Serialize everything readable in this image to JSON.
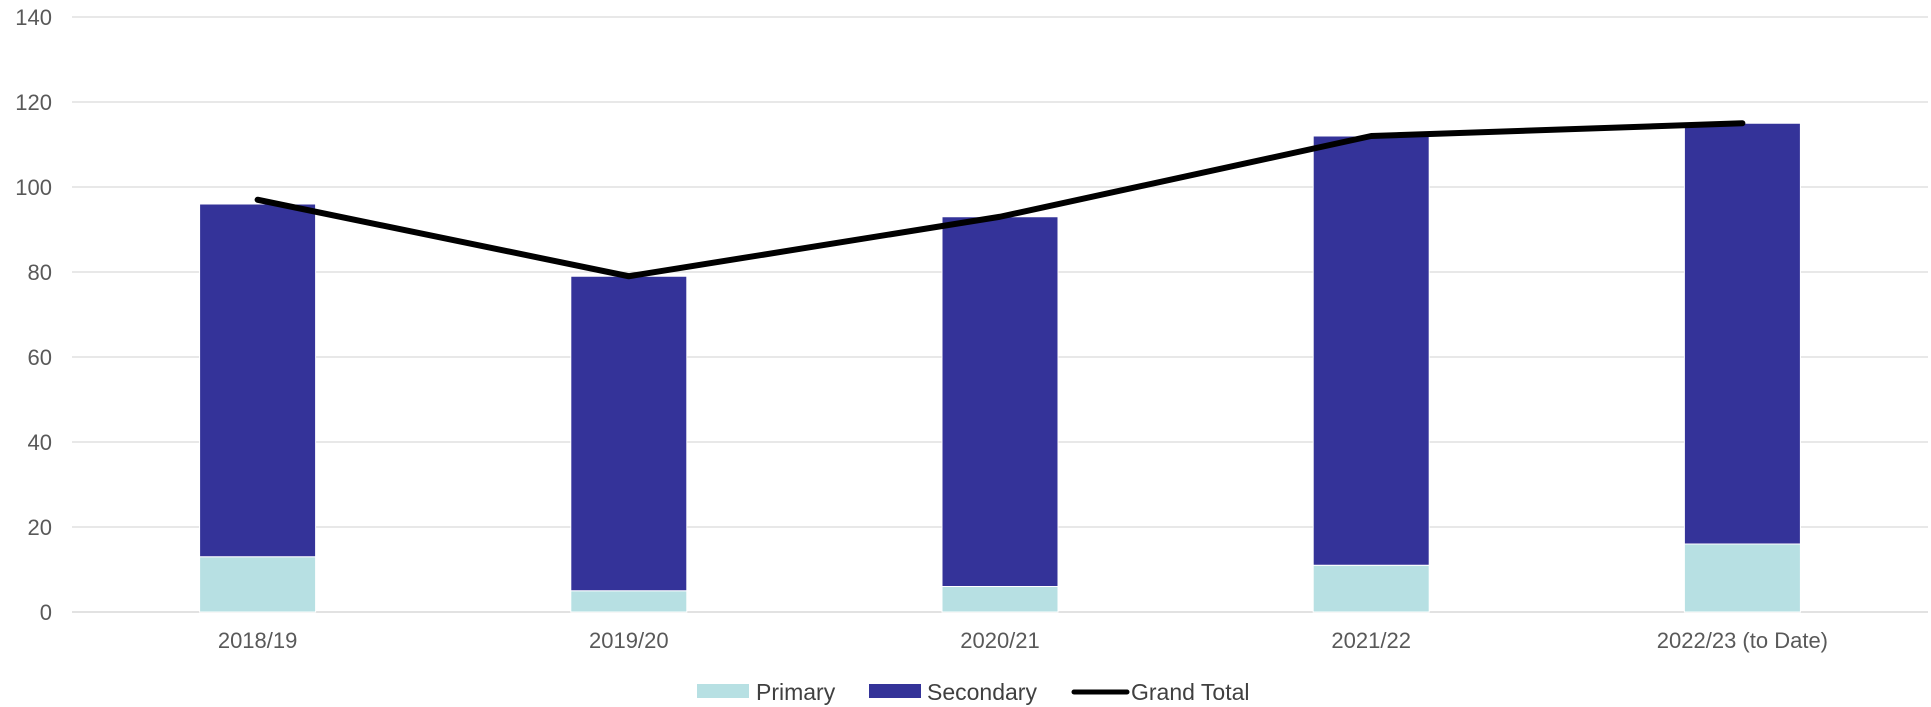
{
  "chart_data": {
    "type": "bar",
    "stacked": true,
    "title": "",
    "xlabel": "",
    "ylabel": "",
    "categories": [
      "2018/19",
      "2019/20",
      "2020/21",
      "2021/22",
      "2022/23 (to Date)"
    ],
    "ylim": [
      0,
      140
    ],
    "yticks": [
      0,
      20,
      40,
      60,
      80,
      100,
      120,
      140
    ],
    "grid": true,
    "legend_position": "bottom",
    "series": [
      {
        "name": "Primary",
        "type": "bar",
        "color": "#b7e0e3",
        "values": [
          13,
          5,
          6,
          11,
          16
        ]
      },
      {
        "name": "Secondary",
        "type": "bar",
        "color": "#343399",
        "values": [
          83,
          74,
          87,
          101,
          99
        ]
      },
      {
        "name": "Grand Total",
        "type": "line",
        "color": "#000000",
        "values": [
          97,
          79,
          93,
          112,
          115
        ]
      }
    ]
  }
}
